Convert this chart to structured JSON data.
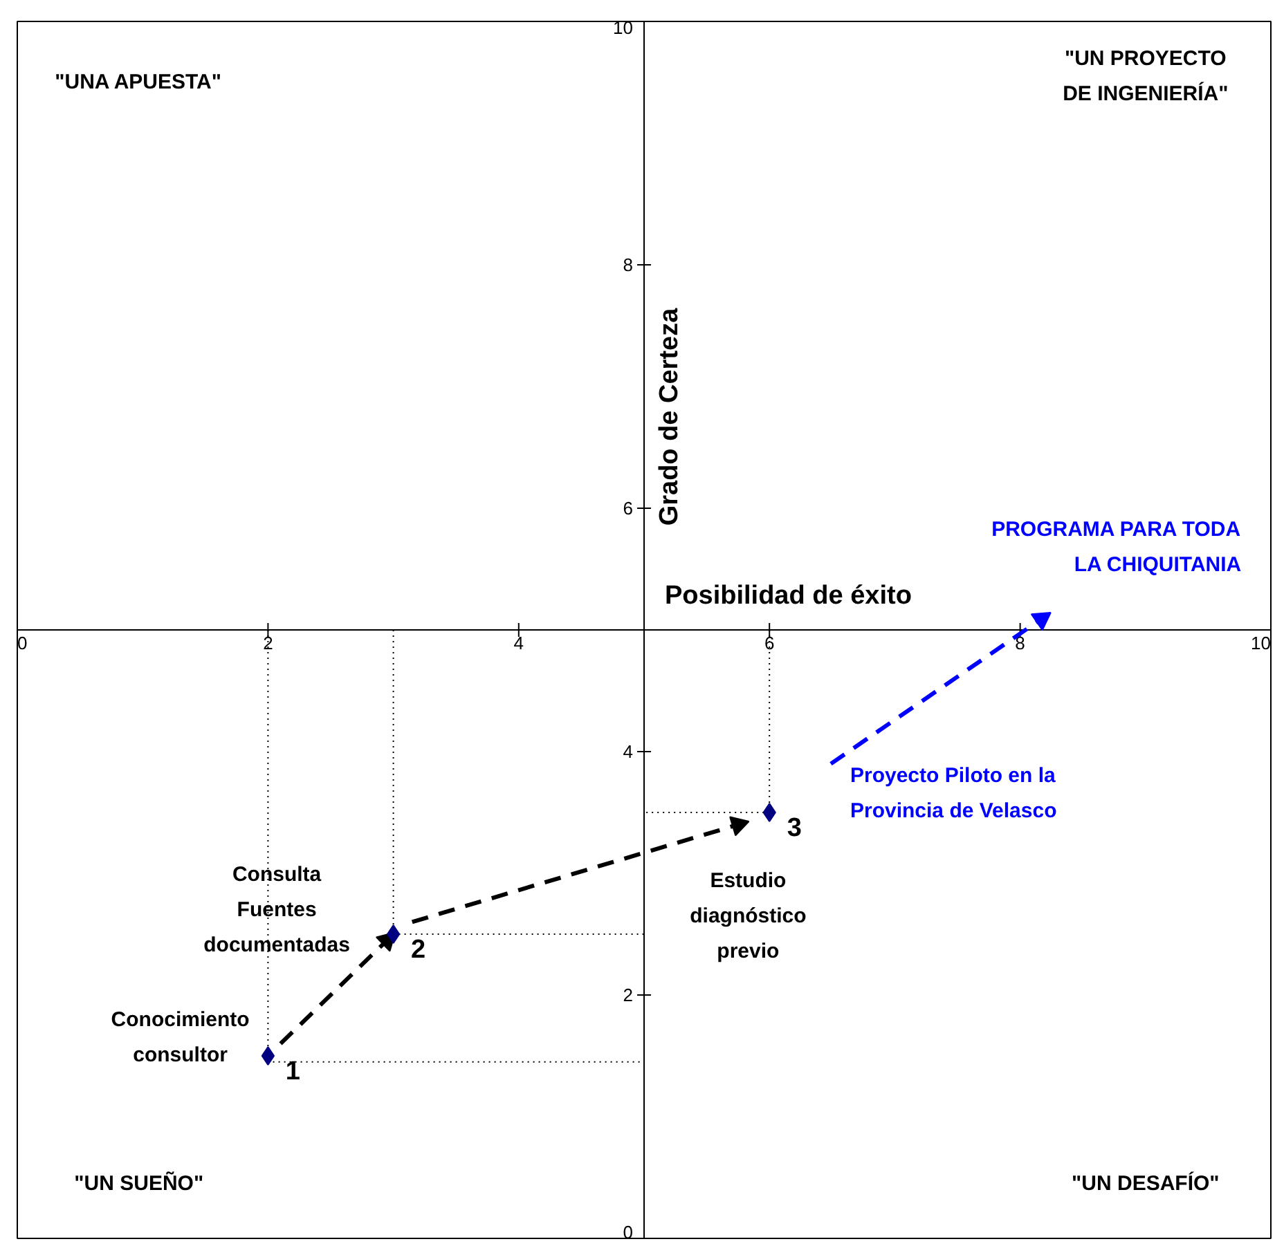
{
  "chart_data": {
    "type": "scatter",
    "xlabel": "Posibilidad de éxito",
    "ylabel": "Grado de Certeza",
    "xlim": [
      0,
      10
    ],
    "ylim": [
      0,
      10
    ],
    "xticks": [
      0,
      2,
      4,
      6,
      8,
      10
    ],
    "yticks": [
      0,
      2,
      4,
      6,
      8,
      10
    ],
    "grid": false,
    "series": [
      {
        "type": "line",
        "x": [
          2,
          2,
          5
        ],
        "values": [
          5,
          1.45,
          1.45
        ],
        "color": "#000000",
        "line_style": "dotted"
      },
      {
        "type": "line",
        "x": [
          3,
          3,
          5
        ],
        "values": [
          5,
          2.5,
          2.5
        ],
        "color": "#000000",
        "line_style": "dotted"
      },
      {
        "type": "line",
        "x": [
          6,
          6,
          5
        ],
        "values": [
          5,
          3.5,
          3.5
        ],
        "color": "#000000",
        "line_style": "dotted"
      },
      {
        "type": "line",
        "x": [
          2.1,
          2.95
        ],
        "values": [
          1.6,
          2.45
        ],
        "color": "#000000",
        "line_style": "dashed",
        "marker": "triangle"
      },
      {
        "type": "line",
        "x": [
          3.15,
          5.75
        ],
        "values": [
          2.6,
          3.4
        ],
        "color": "#000000",
        "line_style": "dashed",
        "marker": "triangle"
      },
      {
        "type": "line",
        "x": [
          6.49,
          8.17
        ],
        "values": [
          3.9,
          5.09
        ],
        "color": "#0000ff",
        "line_style": "dashed",
        "marker": "triangle",
        "value_labels": [
          "Proyecto Piloto en la\nProvincia de Velasco",
          "PROGRAMA PARA TODA\nLA CHIQUITANIA"
        ]
      },
      {
        "x": [
          2,
          3,
          6
        ],
        "values": [
          1.5,
          2.5,
          3.5
        ],
        "color": "#000080",
        "marker": "diamond",
        "value_labels": [
          "1",
          "2",
          "3"
        ]
      }
    ],
    "annotations": [
      "\"UNA APUESTA\"",
      "\"UN PROYECTO\nDE INGENIERÍA\"",
      "\"UN SUEÑO\"",
      "\"UN DESAFÍO\"",
      "Conocimiento\nconsultor",
      "Consulta\nFuentes\ndocumentadas",
      "Estudio\ndiagnóstico\nprevio"
    ]
  }
}
